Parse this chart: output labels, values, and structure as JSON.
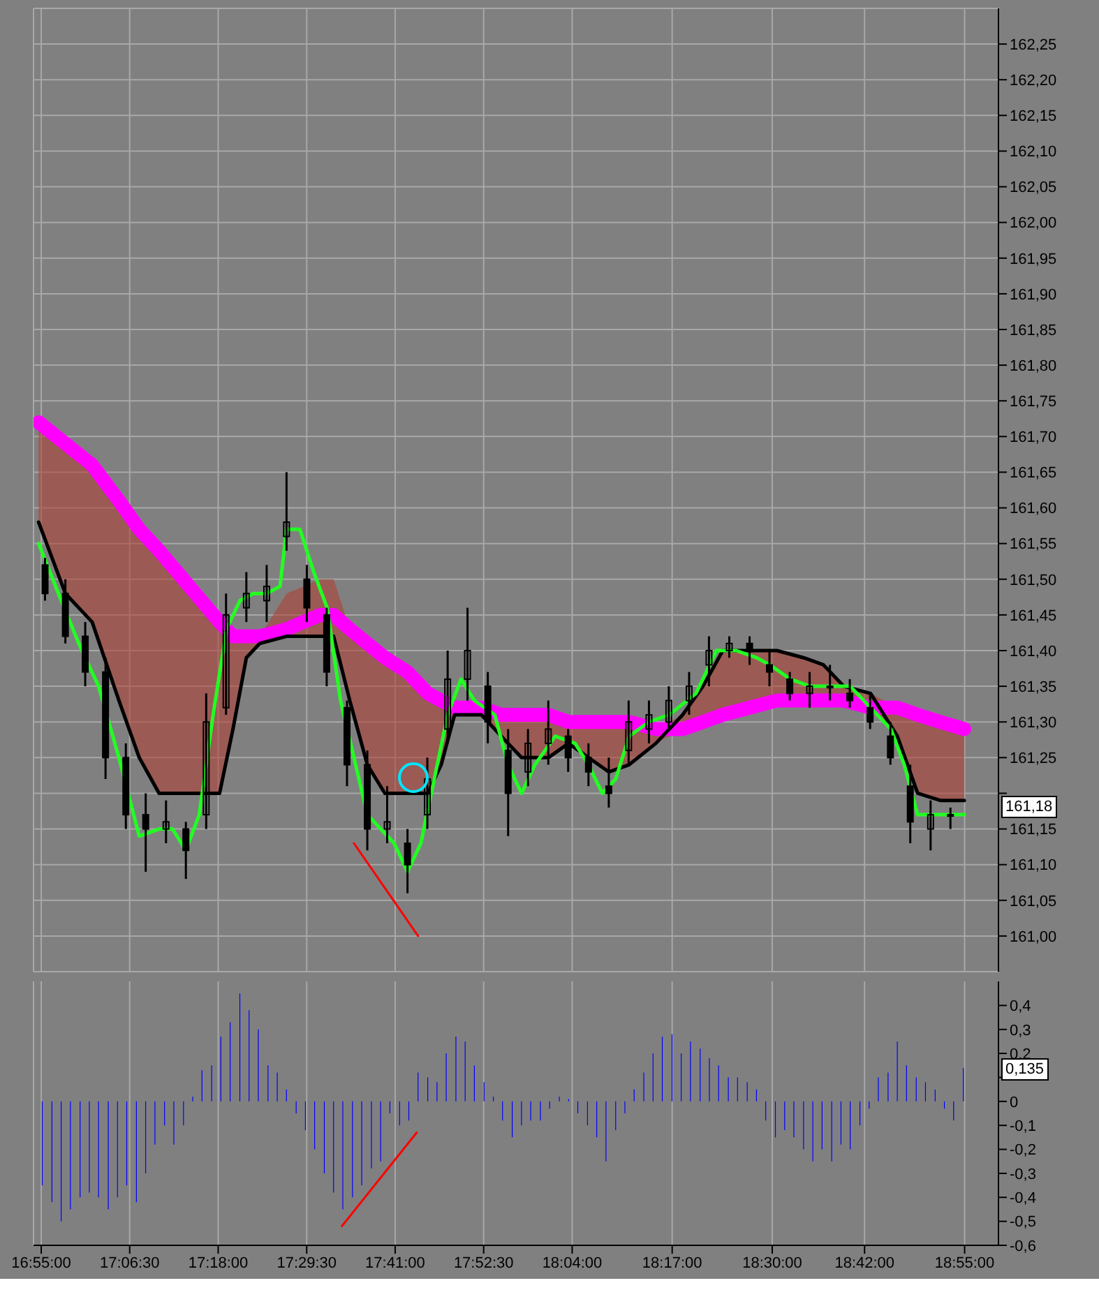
{
  "chart_data": [
    {
      "type": "line",
      "xlim": [
        16.9,
        18.99
      ],
      "ylim": [
        160.95,
        162.3
      ],
      "marker": "none",
      "grid": true,
      "tick_labels": "y",
      "xticks": [
        16.9167,
        17.1083,
        17.3,
        17.4917,
        17.6833,
        17.875,
        18.0667,
        18.2833,
        18.5,
        18.7,
        18.9167
      ],
      "yticks": [
        {
          "value": 161.0,
          "label": "161,00"
        },
        {
          "value": 161.05,
          "label": "161,05"
        },
        {
          "value": 161.1,
          "label": "161,10"
        },
        {
          "value": 161.15,
          "label": "161,15"
        },
        {
          "value": 161.2,
          "label": null
        },
        {
          "value": 161.25,
          "label": "161,25"
        },
        {
          "value": 161.3,
          "label": "161,30"
        },
        {
          "value": 161.35,
          "label": "161,35"
        },
        {
          "value": 161.4,
          "label": "161,40"
        },
        {
          "value": 161.45,
          "label": "161,45"
        },
        {
          "value": 161.5,
          "label": "161,50"
        },
        {
          "value": 161.55,
          "label": "161,55"
        },
        {
          "value": 161.6,
          "label": "161,60"
        },
        {
          "value": 161.65,
          "label": "161,65"
        },
        {
          "value": 161.7,
          "label": "161,70"
        },
        {
          "value": 161.75,
          "label": "161,75"
        },
        {
          "value": 161.8,
          "label": "161,80"
        },
        {
          "value": 161.85,
          "label": "161,85"
        },
        {
          "value": 161.9,
          "label": "161,90"
        },
        {
          "value": 161.95,
          "label": "161,95"
        },
        {
          "value": 162.0,
          "label": "162,00"
        },
        {
          "value": 162.05,
          "label": "162,05"
        },
        {
          "value": 162.1,
          "label": "162,10"
        },
        {
          "value": 162.15,
          "label": "162,15"
        },
        {
          "value": 162.2,
          "label": "162,20"
        },
        {
          "value": 162.25,
          "label": "162,25"
        }
      ],
      "annotations": [
        {
          "text": "161,18",
          "y": 161.18
        }
      ],
      "series": [
        {
          "color": "#ff00ff",
          "x": [
            16.911,
            16.969,
            17.027,
            17.085,
            17.129,
            17.172,
            17.303,
            17.332,
            17.361,
            17.39,
            17.448,
            17.521,
            17.55,
            17.585,
            17.623,
            17.661,
            17.71,
            17.754,
            17.783,
            17.812,
            17.87,
            17.913,
            17.957,
            18.015,
            18.059,
            18.102,
            18.146,
            18.19,
            18.248,
            18.306,
            18.35,
            18.393,
            18.451,
            18.51,
            18.568,
            18.611,
            18.655,
            18.713,
            18.771,
            18.815,
            18.864,
            18.916
          ],
          "values": [
            161.72,
            161.69,
            161.66,
            161.61,
            161.57,
            161.54,
            161.44,
            161.42,
            161.42,
            161.42,
            161.43,
            161.45,
            161.45,
            161.43,
            161.41,
            161.39,
            161.37,
            161.34,
            161.33,
            161.32,
            161.32,
            161.31,
            161.31,
            161.31,
            161.3,
            161.3,
            161.3,
            161.3,
            161.29,
            161.29,
            161.3,
            161.31,
            161.32,
            161.33,
            161.33,
            161.33,
            161.33,
            161.32,
            161.32,
            161.31,
            161.3,
            161.29
          ]
        },
        {
          "color": "#000000",
          "x": [
            16.911,
            16.969,
            17.027,
            17.085,
            17.129,
            17.172,
            17.303,
            17.332,
            17.361,
            17.39,
            17.448,
            17.521,
            17.55,
            17.585,
            17.623,
            17.661,
            17.71,
            17.754,
            17.783,
            17.812,
            17.87,
            17.913,
            17.957,
            18.015,
            18.059,
            18.102,
            18.146,
            18.19,
            18.248,
            18.306,
            18.35,
            18.393,
            18.451,
            18.51,
            18.568,
            18.611,
            18.655,
            18.713,
            18.771,
            18.815,
            18.864,
            18.916
          ],
          "values": [
            161.58,
            161.48,
            161.44,
            161.33,
            161.25,
            161.2,
            161.2,
            161.29,
            161.39,
            161.41,
            161.42,
            161.42,
            161.42,
            161.33,
            161.24,
            161.2,
            161.2,
            161.2,
            161.24,
            161.31,
            161.31,
            161.28,
            161.25,
            161.25,
            161.27,
            161.25,
            161.23,
            161.24,
            161.27,
            161.31,
            161.35,
            161.4,
            161.4,
            161.4,
            161.39,
            161.38,
            161.35,
            161.34,
            161.28,
            161.2,
            161.19,
            161.19
          ],
          "lower": [
            161.58,
            161.48,
            161.44,
            161.33,
            161.25,
            161.2,
            161.2,
            161.29,
            161.39,
            161.41,
            161.42,
            161.42,
            161.42,
            161.33,
            161.24,
            161.2,
            161.2,
            161.2,
            161.24,
            161.31,
            161.31,
            161.28,
            161.25,
            161.25,
            161.27,
            161.25,
            161.23,
            161.24,
            161.27,
            161.29,
            161.3,
            161.31,
            161.32,
            161.33,
            161.33,
            161.33,
            161.33,
            161.32,
            161.28,
            161.2,
            161.19,
            161.19
          ],
          "upper": [
            161.72,
            161.69,
            161.66,
            161.61,
            161.57,
            161.54,
            161.44,
            161.42,
            161.42,
            161.42,
            161.48,
            161.5,
            161.5,
            161.43,
            161.41,
            161.39,
            161.37,
            161.34,
            161.33,
            161.32,
            161.32,
            161.31,
            161.31,
            161.31,
            161.3,
            161.3,
            161.3,
            161.3,
            161.29,
            161.31,
            161.35,
            161.4,
            161.4,
            161.4,
            161.39,
            161.38,
            161.35,
            161.34,
            161.32,
            161.31,
            161.3,
            161.29
          ]
        },
        {
          "color": "#22ff22",
          "x": [
            16.911,
            16.954,
            16.998,
            17.041,
            17.085,
            17.129,
            17.172,
            17.201,
            17.23,
            17.259,
            17.289,
            17.318,
            17.347,
            17.376,
            17.405,
            17.434,
            17.448,
            17.477,
            17.507,
            17.536,
            17.565,
            17.594,
            17.623,
            17.652,
            17.681,
            17.71,
            17.739,
            17.768,
            17.797,
            17.826,
            17.855,
            17.899,
            17.928,
            17.957,
            17.986,
            18.03,
            18.073,
            18.102,
            18.132,
            18.161,
            18.19,
            18.233,
            18.277,
            18.335,
            18.379,
            18.422,
            18.466,
            18.495,
            18.539,
            18.582,
            18.626,
            18.669,
            18.713,
            18.757,
            18.786,
            18.815,
            18.858,
            18.916
          ],
          "values": [
            161.55,
            161.48,
            161.41,
            161.35,
            161.25,
            161.14,
            161.15,
            161.15,
            161.12,
            161.17,
            161.31,
            161.43,
            161.47,
            161.48,
            161.48,
            161.49,
            161.57,
            161.57,
            161.51,
            161.46,
            161.33,
            161.25,
            161.17,
            161.15,
            161.13,
            161.09,
            161.13,
            161.22,
            161.31,
            161.36,
            161.33,
            161.31,
            161.24,
            161.2,
            161.24,
            161.28,
            161.27,
            161.24,
            161.2,
            161.22,
            161.28,
            161.3,
            161.31,
            161.34,
            161.4,
            161.4,
            161.39,
            161.38,
            161.36,
            161.35,
            161.35,
            161.35,
            161.32,
            161.29,
            161.24,
            161.17,
            161.17,
            161.17
          ]
        },
        {
          "type": "candlestick",
          "color": "#000000",
          "x": [
            16.925,
            16.969,
            17.012,
            17.056,
            17.1,
            17.143,
            17.187,
            17.23,
            17.274,
            17.317,
            17.361,
            17.405,
            17.448,
            17.492,
            17.535,
            17.579,
            17.623,
            17.666,
            17.71,
            17.753,
            17.797,
            17.84,
            17.884,
            17.928,
            17.971,
            18.015,
            18.058,
            18.102,
            18.146,
            18.189,
            18.233,
            18.276,
            18.32,
            18.363,
            18.407,
            18.451,
            18.494,
            18.538,
            18.581,
            18.625,
            18.668,
            18.712,
            18.756,
            18.799,
            18.843,
            18.886
          ],
          "ohlc": [
            [
              161.52,
              161.53,
              161.47,
              161.48
            ],
            [
              161.48,
              161.5,
              161.41,
              161.42
            ],
            [
              161.42,
              161.44,
              161.35,
              161.37
            ],
            [
              161.37,
              161.39,
              161.22,
              161.25
            ],
            [
              161.25,
              161.27,
              161.15,
              161.17
            ],
            [
              161.17,
              161.2,
              161.09,
              161.15
            ],
            [
              161.15,
              161.19,
              161.13,
              161.16
            ],
            [
              161.15,
              161.16,
              161.08,
              161.12
            ],
            [
              161.17,
              161.34,
              161.15,
              161.3
            ],
            [
              161.32,
              161.48,
              161.31,
              161.45
            ],
            [
              161.46,
              161.51,
              161.44,
              161.48
            ],
            [
              161.47,
              161.52,
              161.44,
              161.49
            ],
            [
              161.56,
              161.65,
              161.54,
              161.58
            ],
            [
              161.5,
              161.52,
              161.44,
              161.46
            ],
            [
              161.45,
              161.46,
              161.35,
              161.37
            ],
            [
              161.32,
              161.33,
              161.21,
              161.24
            ],
            [
              161.24,
              161.26,
              161.12,
              161.15
            ],
            [
              161.15,
              161.21,
              161.13,
              161.16
            ],
            [
              161.13,
              161.15,
              161.06,
              161.1
            ],
            [
              161.17,
              161.25,
              161.15,
              161.22
            ],
            [
              161.29,
              161.4,
              161.27,
              161.36
            ],
            [
              161.36,
              161.46,
              161.33,
              161.4
            ],
            [
              161.35,
              161.37,
              161.27,
              161.3
            ],
            [
              161.26,
              161.29,
              161.14,
              161.2
            ],
            [
              161.23,
              161.29,
              161.21,
              161.27
            ],
            [
              161.27,
              161.33,
              161.24,
              161.29
            ],
            [
              161.28,
              161.29,
              161.23,
              161.25
            ],
            [
              161.25,
              161.27,
              161.21,
              161.23
            ],
            [
              161.21,
              161.25,
              161.18,
              161.2
            ],
            [
              161.26,
              161.33,
              161.24,
              161.3
            ],
            [
              161.29,
              161.33,
              161.27,
              161.31
            ],
            [
              161.3,
              161.35,
              161.29,
              161.33
            ],
            [
              161.33,
              161.37,
              161.31,
              161.35
            ],
            [
              161.38,
              161.42,
              161.35,
              161.4
            ],
            [
              161.4,
              161.42,
              161.39,
              161.41
            ],
            [
              161.41,
              161.42,
              161.38,
              161.4
            ],
            [
              161.38,
              161.4,
              161.35,
              161.37
            ],
            [
              161.36,
              161.37,
              161.33,
              161.34
            ],
            [
              161.34,
              161.37,
              161.32,
              161.35
            ],
            [
              161.35,
              161.38,
              161.33,
              161.35
            ],
            [
              161.34,
              161.36,
              161.32,
              161.33
            ],
            [
              161.32,
              161.34,
              161.29,
              161.3
            ],
            [
              161.28,
              161.3,
              161.24,
              161.25
            ],
            [
              161.21,
              161.24,
              161.13,
              161.16
            ],
            [
              161.15,
              161.19,
              161.12,
              161.17
            ],
            [
              161.17,
              161.18,
              161.15,
              161.17
            ]
          ]
        },
        {
          "color": "#ff0000",
          "x": [
            17.594,
            17.733
          ],
          "values": [
            161.13,
            161.0
          ]
        }
      ]
    },
    {
      "type": "bar",
      "xlim": [
        16.9,
        18.99
      ],
      "ylim": [
        -0.6,
        0.5
      ],
      "grid": "x",
      "marker": "none",
      "xticks": [
        {
          "value": 16.9167,
          "label": "16:55:00"
        },
        {
          "value": 17.1083,
          "label": "17:06:30"
        },
        {
          "value": 17.3,
          "label": "17:18:00"
        },
        {
          "value": 17.4917,
          "label": "17:29:30"
        },
        {
          "value": 17.6833,
          "label": "17:41:00"
        },
        {
          "value": 17.875,
          "label": "17:52:30"
        },
        {
          "value": 18.0667,
          "label": "18:04:00"
        },
        {
          "value": 18.2833,
          "label": "18:17:00"
        },
        {
          "value": 18.5,
          "label": "18:30:00"
        },
        {
          "value": 18.7,
          "label": "18:42:00"
        },
        {
          "value": 18.9167,
          "label": "18:55:00"
        }
      ],
      "yticks": [
        {
          "value": -0.6,
          "label": "-0,6"
        },
        {
          "value": -0.5,
          "label": "-0,5"
        },
        {
          "value": -0.4,
          "label": "-0,4"
        },
        {
          "value": -0.3,
          "label": "-0,3"
        },
        {
          "value": -0.2,
          "label": "-0,2"
        },
        {
          "value": -0.1,
          "label": "-0,1"
        },
        0,
        {
          "value": 0.1,
          "label": null
        },
        {
          "value": 0.2,
          "label": "0,2"
        },
        {
          "value": 0.3,
          "label": "0,3"
        },
        {
          "value": 0.4,
          "label": "0,4"
        }
      ],
      "annotations": [
        {
          "text": "0,135",
          "y": 0.135
        }
      ],
      "x": [
        16.919,
        16.94,
        16.96,
        16.98,
        17.001,
        17.021,
        17.041,
        17.062,
        17.082,
        17.102,
        17.123,
        17.143,
        17.163,
        17.184,
        17.204,
        17.225,
        17.245,
        17.265,
        17.286,
        17.306,
        17.326,
        17.347,
        17.367,
        17.387,
        17.408,
        17.428,
        17.448,
        17.469,
        17.489,
        17.509,
        17.53,
        17.55,
        17.57,
        17.591,
        17.611,
        17.632,
        17.652,
        17.672,
        17.693,
        17.713,
        17.733,
        17.754,
        17.774,
        17.794,
        17.815,
        17.835,
        17.855,
        17.876,
        17.896,
        17.916,
        17.937,
        17.957,
        17.977,
        17.998,
        18.018,
        18.039,
        18.059,
        18.079,
        18.1,
        18.12,
        18.14,
        18.161,
        18.181,
        18.201,
        18.222,
        18.242,
        18.262,
        18.283,
        18.303,
        18.323,
        18.344,
        18.364,
        18.384,
        18.405,
        18.425,
        18.446,
        18.466,
        18.486,
        18.507,
        18.527,
        18.547,
        18.568,
        18.588,
        18.608,
        18.629,
        18.649,
        18.669,
        18.69,
        18.71,
        18.73,
        18.751,
        18.771,
        18.791,
        18.812,
        18.832,
        18.853,
        18.873,
        18.893,
        18.914
      ],
      "series": [
        {
          "color": "#0000ff",
          "values": [
            -0.35,
            -0.42,
            -0.5,
            -0.45,
            -0.4,
            -0.38,
            -0.4,
            -0.45,
            -0.4,
            -0.35,
            -0.42,
            -0.3,
            -0.18,
            -0.1,
            -0.18,
            -0.1,
            0.02,
            0.13,
            0.15,
            0.27,
            0.33,
            0.45,
            0.38,
            0.3,
            0.15,
            0.12,
            0.05,
            -0.05,
            -0.12,
            -0.2,
            -0.3,
            -0.38,
            -0.45,
            -0.4,
            -0.35,
            -0.28,
            -0.25,
            -0.05,
            -0.1,
            -0.08,
            0.12,
            0.1,
            0.08,
            0.2,
            0.27,
            0.25,
            0.15,
            0.08,
            0.02,
            -0.08,
            -0.15,
            -0.1,
            -0.08,
            -0.08,
            -0.03,
            0.02,
            0.01,
            -0.05,
            -0.1,
            -0.15,
            -0.25,
            -0.12,
            -0.05,
            0.05,
            0.12,
            0.2,
            0.27,
            0.28,
            0.2,
            0.25,
            0.22,
            0.18,
            0.15,
            0.1,
            0.1,
            0.08,
            0.05,
            -0.08,
            -0.15,
            -0.12,
            -0.15,
            -0.2,
            -0.25,
            -0.2,
            -0.25,
            -0.18,
            -0.2,
            -0.1,
            -0.03,
            0.1,
            0.12,
            0.25,
            0.15,
            0.1,
            0.08,
            0.05,
            -0.03,
            -0.08,
            0.14
          ]
        },
        {
          "type": "line",
          "color": "#ff0000",
          "x": [
            17.568,
            17.73
          ],
          "values": [
            -0.52,
            -0.13
          ]
        }
      ]
    }
  ]
}
